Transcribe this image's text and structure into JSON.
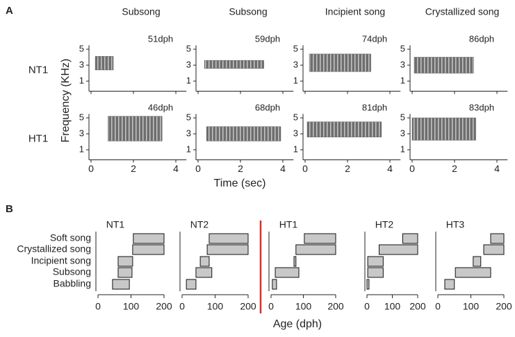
{
  "panel_labels": [
    "A",
    "B"
  ],
  "panel_b_stages": [
    "Soft song",
    "Crystallized song",
    "Incipient song",
    "Subsong",
    "Babbling"
  ],
  "panel_b_xlabel": "Age (dph)",
  "chart_data": [
    {
      "type": "spectrogram",
      "column_titles": [
        "Subsong",
        "Subsong",
        "Incipient song",
        "Crystallized song"
      ],
      "row_labels": [
        "NT1",
        "HT1"
      ],
      "ages": [
        [
          "51dph",
          "59dph",
          "74dph",
          "86dph"
        ],
        [
          "46dph",
          "68dph",
          "81dph",
          "83dph"
        ]
      ],
      "songs": [
        [
          [
            0.2,
            1.05,
            2.4,
            4.1
          ],
          [
            0.3,
            3.1,
            2.6,
            3.6
          ],
          [
            0.2,
            3.1,
            2.2,
            4.4
          ],
          [
            0.1,
            2.9,
            2.0,
            4.0
          ]
        ],
        [
          [
            0.8,
            3.35,
            2.1,
            5.2
          ],
          [
            0.4,
            3.9,
            2.1,
            3.9
          ],
          [
            0.1,
            3.6,
            2.6,
            4.5
          ],
          [
            0.0,
            3.0,
            2.2,
            5.0
          ]
        ]
      ],
      "xlabel": "Time (sec)",
      "ylabel": "Frequency (KHz)",
      "xlim": [
        0,
        4.5
      ],
      "xticks": [
        0,
        2,
        4
      ],
      "ylim": [
        0,
        5.5
      ],
      "yticks": [
        1,
        3,
        5
      ],
      "color": "#333333"
    },
    {
      "type": "range-bar",
      "title": "NT1",
      "ranges": [
        [
          107,
          200
        ],
        [
          105,
          200
        ],
        [
          61,
          105
        ],
        [
          61,
          103
        ],
        [
          44,
          95
        ]
      ],
      "xlim": [
        0,
        200
      ],
      "xticks": [
        0,
        100,
        200
      ],
      "color": "#c8c8c8"
    },
    {
      "type": "range-bar",
      "title": "NT2",
      "ranges": [
        [
          82,
          200
        ],
        [
          76,
          200
        ],
        [
          55,
          82
        ],
        [
          42,
          90
        ],
        [
          13,
          42
        ]
      ],
      "xlim": [
        0,
        200
      ],
      "xticks": [
        0,
        100,
        200
      ],
      "color": "#c8c8c8"
    },
    {
      "type": "range-bar",
      "title": "HT1",
      "ranges": [
        [
          103,
          200
        ],
        [
          77,
          200
        ],
        [
          71,
          77
        ],
        [
          13,
          86
        ],
        [
          4,
          17
        ]
      ],
      "xlim": [
        0,
        200
      ],
      "xticks": [
        0,
        100,
        200
      ],
      "color": "#c8c8c8"
    },
    {
      "type": "range-bar",
      "title": "HT2",
      "ranges": [
        [
          141,
          200
        ],
        [
          48,
          200
        ],
        [
          3,
          64
        ],
        [
          3,
          64
        ],
        [
          0,
          8
        ]
      ],
      "xlim": [
        0,
        200
      ],
      "xticks": [
        0,
        100,
        200
      ],
      "color": "#c8c8c8"
    },
    {
      "type": "range-bar",
      "title": "HT3",
      "ranges": [
        [
          160,
          200
        ],
        [
          139,
          200
        ],
        [
          107,
          130
        ],
        [
          53,
          160
        ],
        [
          21,
          50
        ]
      ],
      "xlim": [
        0,
        200
      ],
      "xticks": [
        0,
        100,
        200
      ],
      "color": "#c8c8c8"
    }
  ]
}
